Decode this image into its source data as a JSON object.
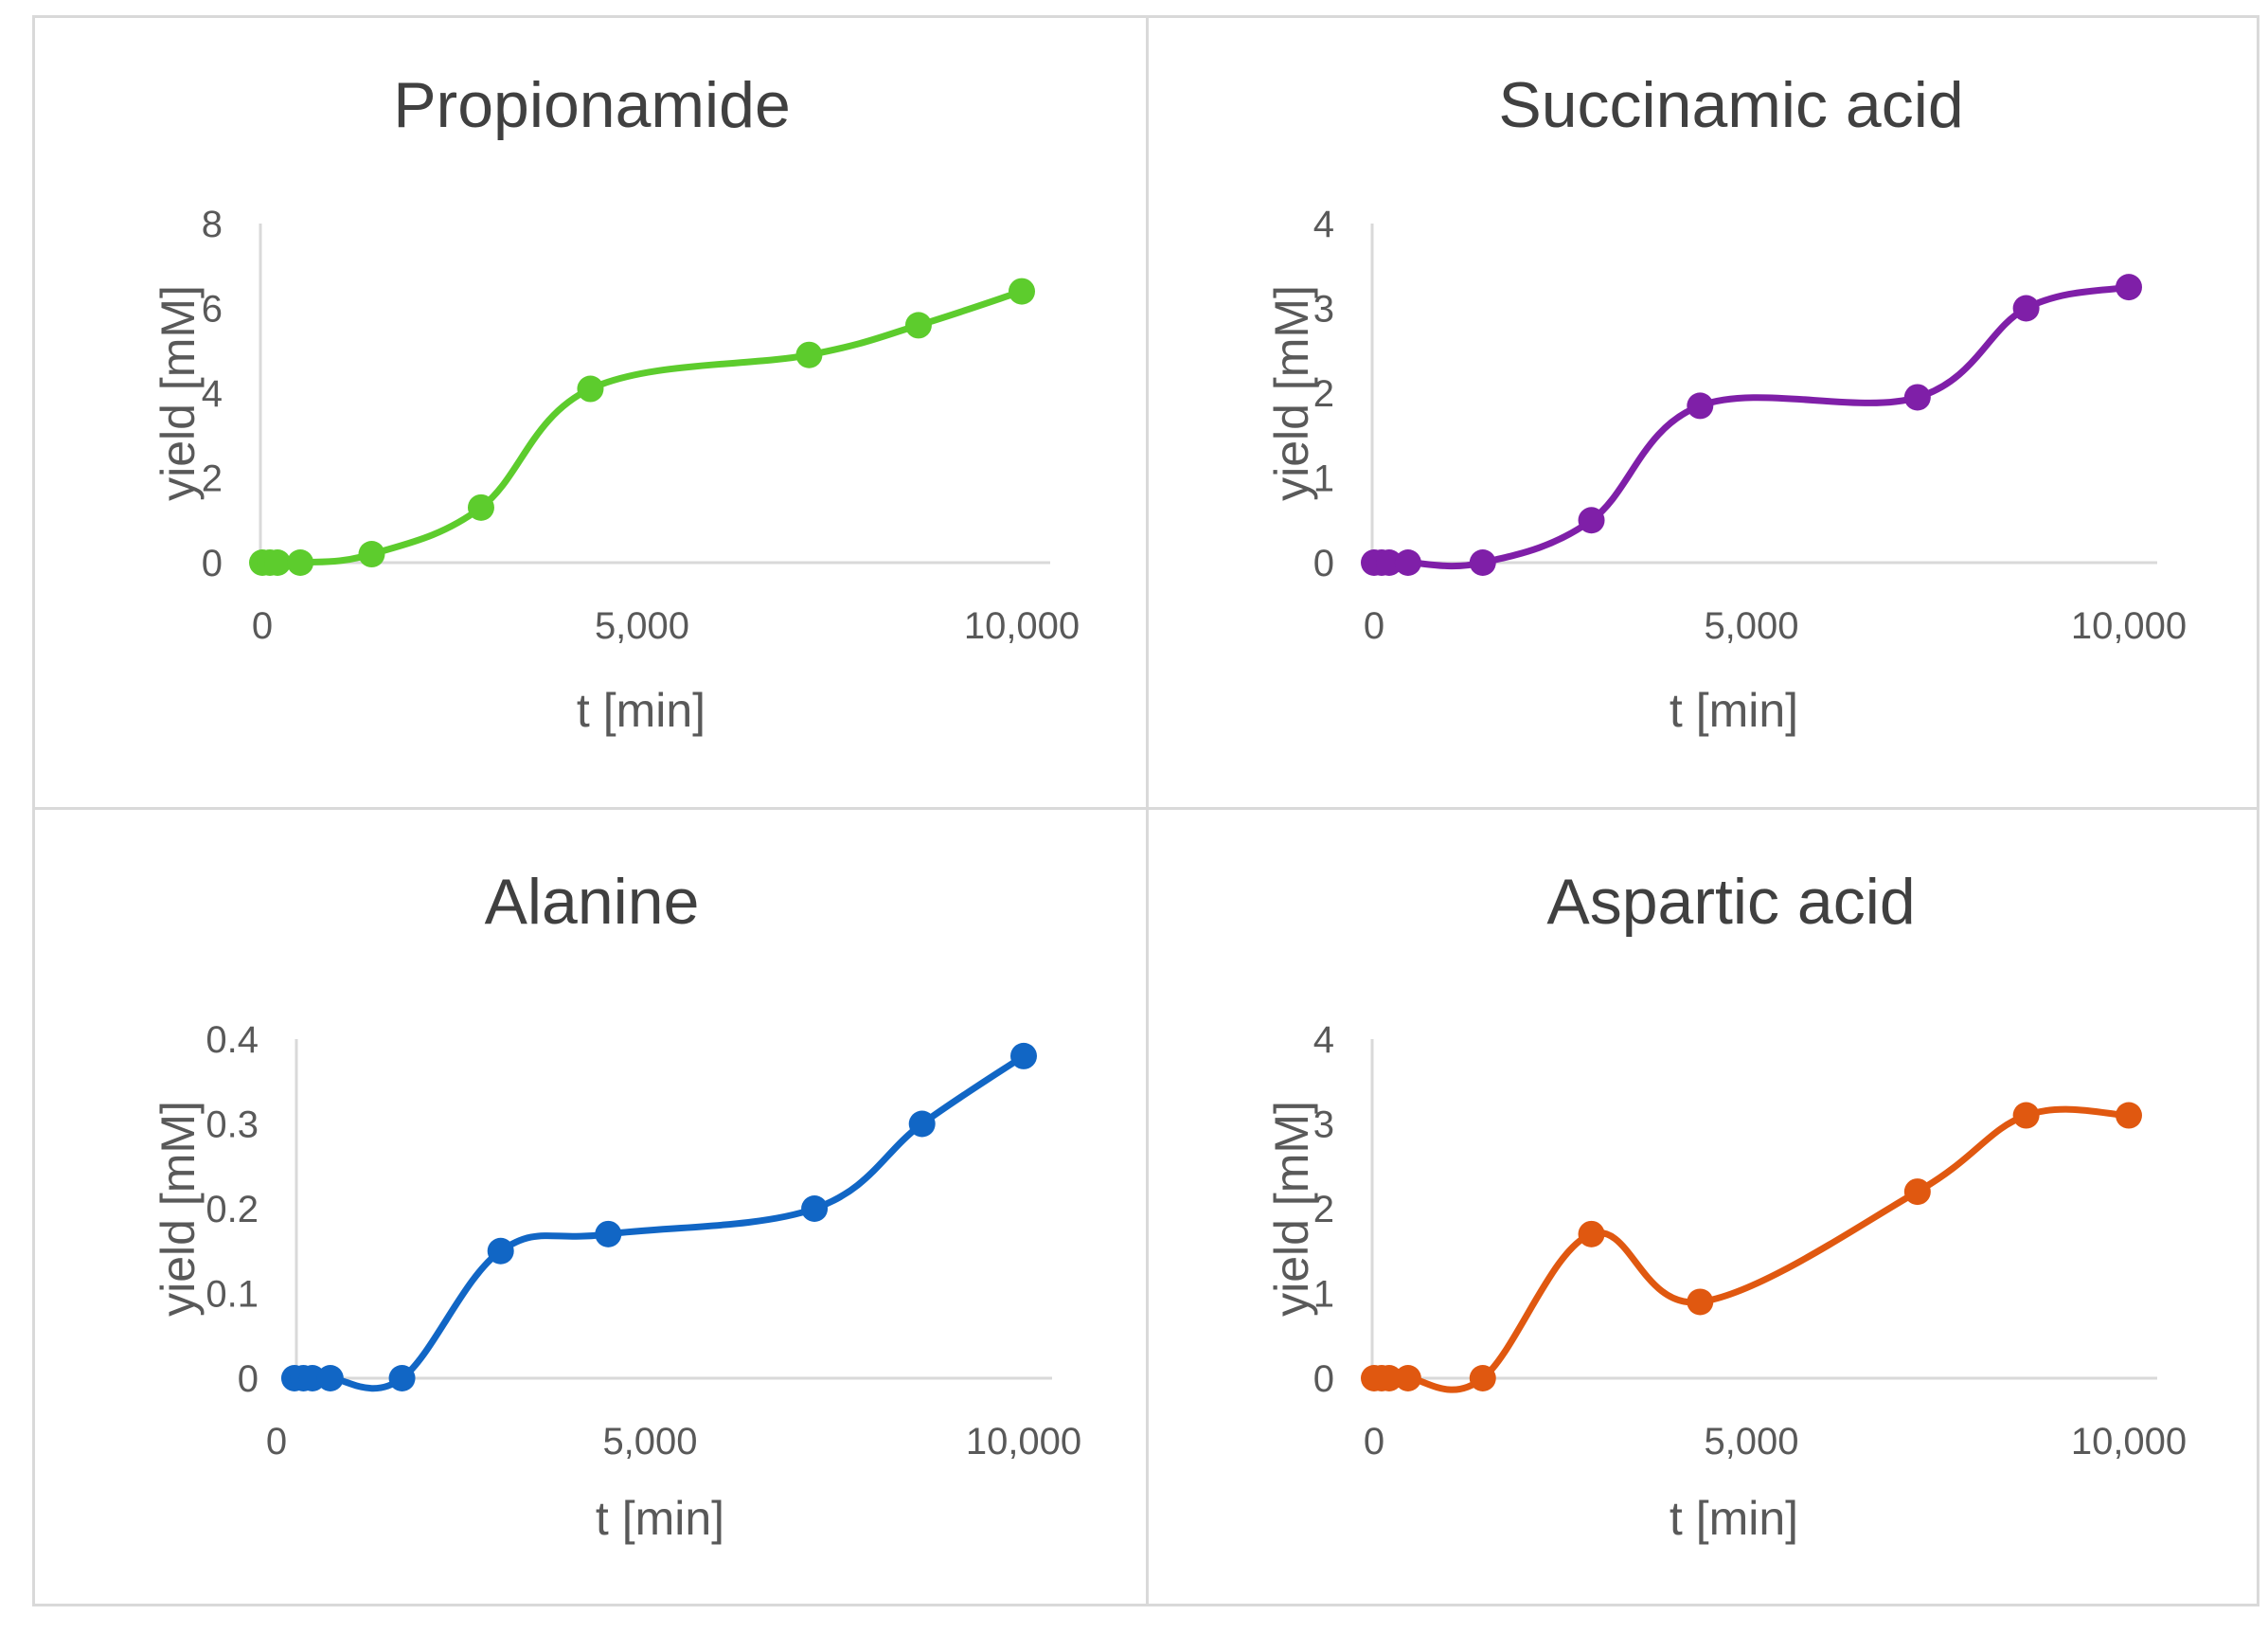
{
  "chart_data": [
    {
      "type": "line",
      "title": "Propionamide",
      "xlabel": "t [min]",
      "ylabel": "yield [mM]",
      "xlim": [
        0,
        10000
      ],
      "ylim": [
        0,
        8
      ],
      "xticks": [
        0,
        5000,
        10000
      ],
      "xtick_labels": [
        "0",
        "5,000",
        "10,000"
      ],
      "yticks": [
        0,
        2,
        4,
        6,
        8
      ],
      "ytick_labels": [
        "0",
        "2",
        "4",
        "6",
        "8"
      ],
      "color": "#5dcc2d",
      "grid": false,
      "legend": "none",
      "x": [
        0,
        100,
        200,
        500,
        1440,
        2880,
        4320,
        7200,
        8640,
        10000
      ],
      "y": [
        0,
        0,
        0,
        0,
        0.2,
        1.3,
        4.1,
        4.9,
        5.6,
        6.4
      ]
    },
    {
      "type": "line",
      "title": "Succinamic acid",
      "xlabel": "t [min]",
      "ylabel": "yield [mM]",
      "xlim": [
        0,
        10000
      ],
      "ylim": [
        0,
        4
      ],
      "xticks": [
        0,
        5000,
        10000
      ],
      "xtick_labels": [
        "0",
        "5,000",
        "10,000"
      ],
      "yticks": [
        0,
        1,
        2,
        3,
        4
      ],
      "ytick_labels": [
        "0",
        "1",
        "2",
        "3",
        "4"
      ],
      "color": "#7f1fa8",
      "grid": false,
      "legend": "none",
      "x": [
        0,
        100,
        200,
        450,
        1440,
        2880,
        4320,
        7200,
        8640,
        10000
      ],
      "y": [
        0,
        0,
        0,
        0,
        0,
        0.5,
        1.85,
        1.95,
        3.0,
        3.25
      ]
    },
    {
      "type": "line",
      "title": "Alanine",
      "xlabel": "t [min]",
      "ylabel": "yield [mM]",
      "xlim": [
        0,
        10000
      ],
      "ylim": [
        0,
        0.4
      ],
      "xticks": [
        0,
        5000,
        10000
      ],
      "xtick_labels": [
        "0",
        "5,000",
        "10,000"
      ],
      "yticks": [
        0,
        0.1,
        0.2,
        0.3,
        0.4
      ],
      "ytick_labels": [
        "0",
        "0.1",
        "0.2",
        "0.3",
        "0.4"
      ],
      "color": "#1166c5",
      "grid": false,
      "legend": "none",
      "x": [
        240,
        360,
        480,
        720,
        1680,
        3000,
        4440,
        7200,
        8640,
        10000
      ],
      "y": [
        0,
        0,
        0,
        0,
        0,
        0.15,
        0.17,
        0.2,
        0.3,
        0.38
      ]
    },
    {
      "type": "line",
      "title": "Aspartic acid",
      "xlabel": "t [min]",
      "ylabel": "yield [mM]",
      "xlim": [
        0,
        10000
      ],
      "ylim": [
        0,
        4
      ],
      "xticks": [
        0,
        5000,
        10000
      ],
      "xtick_labels": [
        "0",
        "5,000",
        "10,000"
      ],
      "yticks": [
        0,
        1,
        2,
        3,
        4
      ],
      "ytick_labels": [
        "0",
        "1",
        "2",
        "3",
        "4"
      ],
      "color": "#e05810",
      "grid": false,
      "legend": "none",
      "x": [
        0,
        100,
        200,
        450,
        1440,
        2880,
        4320,
        7200,
        8640,
        10000
      ],
      "y": [
        0,
        0,
        0,
        0,
        0,
        1.7,
        0.9,
        2.2,
        3.1,
        3.1
      ]
    }
  ]
}
